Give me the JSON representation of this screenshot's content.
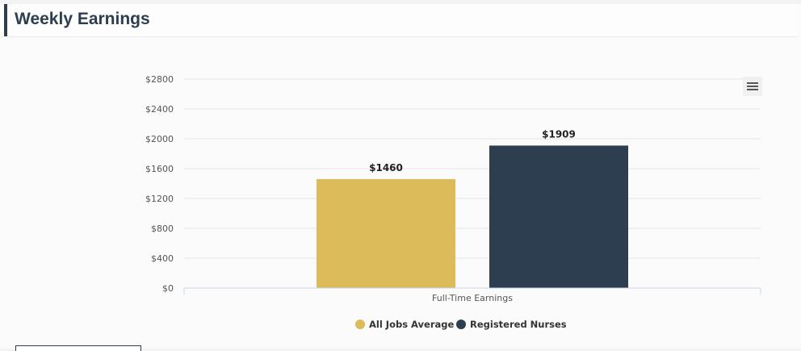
{
  "header": {
    "title": "Weekly Earnings"
  },
  "colors": {
    "all_jobs": "#dcbb5a",
    "nurses": "#2c3e50",
    "accent": "#2c3e50"
  },
  "menu": {
    "icon": "hamburger-menu-icon"
  },
  "chart_data": {
    "type": "bar",
    "categories": [
      "Full-Time Earnings"
    ],
    "series": [
      {
        "name": "All Jobs Average",
        "values": [
          1460
        ],
        "color": "#dcbb5a"
      },
      {
        "name": "Registered Nurses",
        "values": [
          1909
        ],
        "color": "#2c3e50"
      }
    ],
    "data_labels": [
      "$1460",
      "$1909"
    ],
    "y_ticks": [
      0,
      400,
      800,
      1200,
      1600,
      2000,
      2400,
      2800
    ],
    "y_tick_labels": [
      "$0",
      "$400",
      "$800",
      "$1200",
      "$1600",
      "$2000",
      "$2400",
      "$2800"
    ],
    "ylim": [
      0,
      2800
    ],
    "title": "",
    "xlabel": "",
    "ylabel": "",
    "grid": true,
    "legend_position": "bottom-center"
  }
}
